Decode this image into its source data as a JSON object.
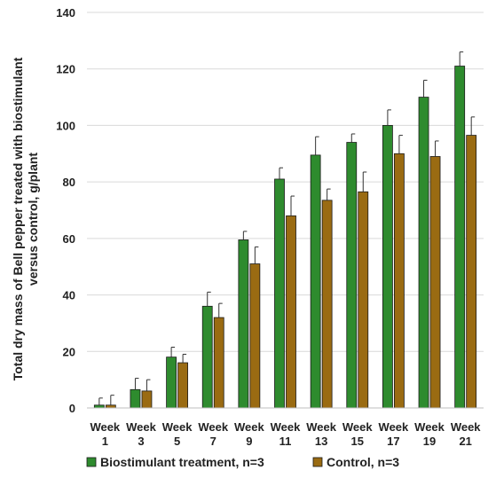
{
  "chart_data": {
    "type": "bar",
    "title": "",
    "xlabel": "",
    "ylabel": "Total dry mass of Bell pepper treated with biostimulant versus control, g/plant",
    "ylabel_lines": [
      "Total dry mass of Bell pepper treated with biostimulant",
      "versus control, g/plant"
    ],
    "ylim": [
      0,
      140
    ],
    "yticks": [
      0,
      20,
      40,
      60,
      80,
      100,
      120,
      140
    ],
    "grid": true,
    "legend_position": "bottom",
    "categories": [
      "Week 1",
      "Week 3",
      "Week 5",
      "Week 7",
      "Week 9",
      "Week 11",
      "Week 13",
      "Week 15",
      "Week 17",
      "Week 19",
      "Week 21"
    ],
    "category_lines": [
      [
        "Week",
        "1"
      ],
      [
        "Week",
        "3"
      ],
      [
        "Week",
        "5"
      ],
      [
        "Week",
        "7"
      ],
      [
        "Week",
        "9"
      ],
      [
        "Week",
        "11"
      ],
      [
        "Week",
        "13"
      ],
      [
        "Week",
        "15"
      ],
      [
        "Week",
        "17"
      ],
      [
        "Week",
        "19"
      ],
      [
        "Week",
        "21"
      ]
    ],
    "series": [
      {
        "name": "Biostimulant treatment, n=3",
        "color": "#2e8b2e",
        "values": [
          1,
          6.5,
          18,
          36,
          59.5,
          81,
          89.5,
          94,
          100,
          110,
          121
        ],
        "errors": [
          2.5,
          4,
          3.5,
          5,
          3,
          4,
          6.5,
          3,
          5.5,
          6,
          5
        ]
      },
      {
        "name": "Control, n=3",
        "color": "#9a6b12",
        "values": [
          1,
          6,
          16,
          32,
          51,
          68,
          73.5,
          76.5,
          90,
          89,
          96.5
        ],
        "errors": [
          3.5,
          4,
          3,
          5,
          6,
          7,
          4,
          7,
          6.5,
          5.5,
          6.5
        ]
      }
    ]
  }
}
